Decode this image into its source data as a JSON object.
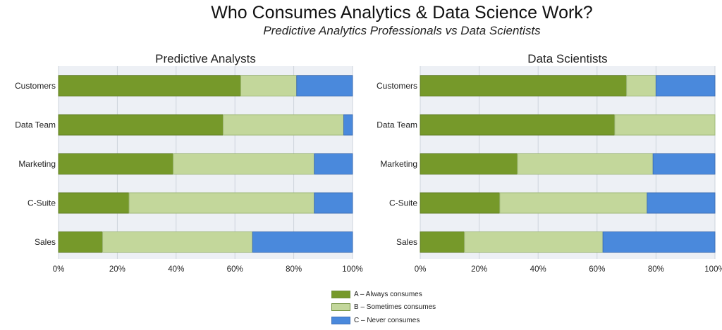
{
  "title": "Who Consumes Analytics & Data Science Work?",
  "subtitle": "Predictive Analytics Professionals vs Data Scientists",
  "colors": {
    "always": "#76992a",
    "sometimes": "#c3d79b",
    "never": "#4a89dc",
    "plot_bg": "#edf0f5",
    "grid": "#cdd3dc"
  },
  "legend": [
    {
      "key": "always",
      "label": "A – Always consumes"
    },
    {
      "key": "sometimes",
      "label": "B – Sometimes consumes"
    },
    {
      "key": "never",
      "label": "C – Never consumes"
    }
  ],
  "chart_data": [
    {
      "type": "bar",
      "stacked": "percent",
      "orientation": "horizontal",
      "title": "Predictive Analysts",
      "categories": [
        "Customers",
        "Data Team",
        "Marketing",
        "C-Suite",
        "Sales"
      ],
      "series": [
        {
          "name": "A – Always consumes",
          "key": "always",
          "values": [
            62,
            56,
            39,
            24,
            15
          ]
        },
        {
          "name": "B – Sometimes consumes",
          "key": "sometimes",
          "values": [
            19,
            41,
            48,
            63,
            51
          ]
        },
        {
          "name": "C – Never consumes",
          "key": "never",
          "values": [
            19,
            3,
            13,
            13,
            34
          ]
        }
      ],
      "xlim": [
        0,
        100
      ],
      "xticks": [
        "0%",
        "20%",
        "40%",
        "60%",
        "80%",
        "100%"
      ],
      "grid": true,
      "legend_position": "bottom-center"
    },
    {
      "type": "bar",
      "stacked": "percent",
      "orientation": "horizontal",
      "title": "Data Scientists",
      "categories": [
        "Customers",
        "Data Team",
        "Marketing",
        "C-Suite",
        "Sales"
      ],
      "series": [
        {
          "name": "A – Always consumes",
          "key": "always",
          "values": [
            70,
            66,
            33,
            27,
            15
          ]
        },
        {
          "name": "B – Sometimes consumes",
          "key": "sometimes",
          "values": [
            10,
            34,
            46,
            50,
            47
          ]
        },
        {
          "name": "C – Never consumes",
          "key": "never",
          "values": [
            20,
            0,
            21,
            23,
            38
          ]
        }
      ],
      "xlim": [
        0,
        100
      ],
      "xticks": [
        "0%",
        "20%",
        "40%",
        "60%",
        "80%",
        "100%"
      ],
      "grid": true,
      "legend_position": "bottom-center"
    }
  ]
}
